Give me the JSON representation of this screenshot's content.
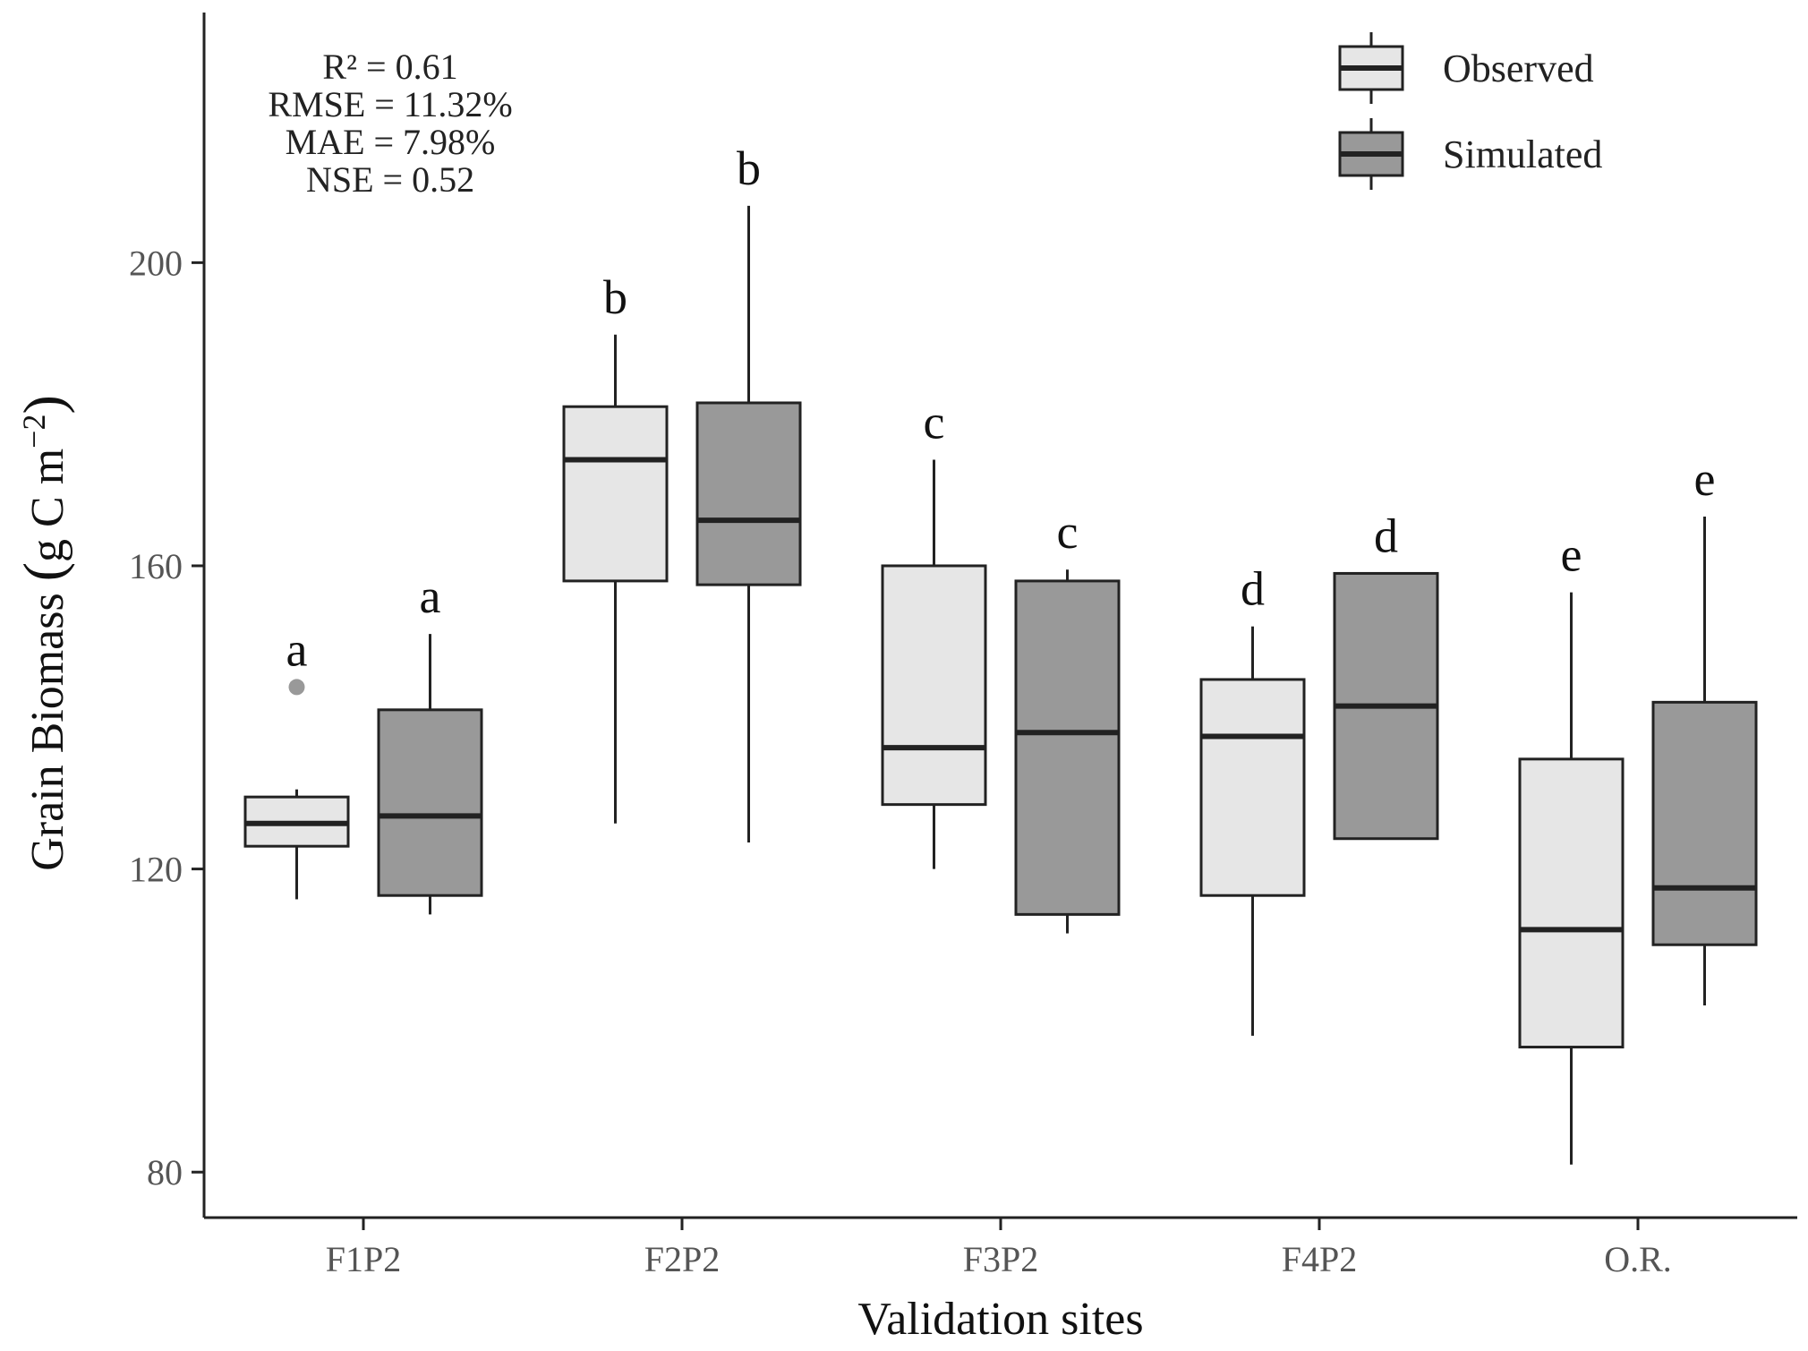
{
  "chart_data": {
    "type": "boxplot",
    "xlabel": "Validation sites",
    "ylabel": "Grain Biomass (g C m⁻²)",
    "ylabel_parts": {
      "main": "Grain Biomass ",
      "paren_open": "(",
      "units": "g C m",
      "exponent": "−2",
      "paren_close": ")"
    },
    "ylim": [
      74,
      233
    ],
    "yticks": [
      80,
      120,
      160,
      200
    ],
    "categories": [
      "F1P2",
      "F2P2",
      "F3P2",
      "F4P2",
      "O.R."
    ],
    "legend": {
      "position": "top-right",
      "entries": [
        {
          "name": "Observed",
          "color": "#e6e6e6"
        },
        {
          "name": "Simulated",
          "color": "#999999"
        }
      ]
    },
    "stats_text": [
      "R² = 0.61",
      "RMSE = 11.32%",
      "MAE  = 7.98%",
      "NSE  = 0.52"
    ],
    "series": [
      {
        "name": "Observed",
        "color": "#e6e6e6",
        "boxes": [
          {
            "category": "F1P2",
            "whisker_low": 116,
            "q1": 123,
            "median": 126,
            "q3": 129.5,
            "whisker_high": 130.5,
            "outliers": [
              144
            ],
            "letter": "a"
          },
          {
            "category": "F2P2",
            "whisker_low": 126,
            "q1": 158,
            "median": 174,
            "q3": 181,
            "whisker_high": 190.5,
            "outliers": [],
            "letter": "b"
          },
          {
            "category": "F3P2",
            "whisker_low": 120,
            "q1": 128.5,
            "median": 136,
            "q3": 160,
            "whisker_high": 174,
            "outliers": [],
            "letter": "c"
          },
          {
            "category": "F4P2",
            "whisker_low": 98,
            "q1": 116.5,
            "median": 137.5,
            "q3": 145,
            "whisker_high": 152,
            "outliers": [],
            "letter": "d"
          },
          {
            "category": "O.R.",
            "whisker_low": 81,
            "q1": 96.5,
            "median": 112,
            "q3": 134.5,
            "whisker_high": 156.5,
            "outliers": [],
            "letter": "e"
          }
        ]
      },
      {
        "name": "Simulated",
        "color": "#999999",
        "boxes": [
          {
            "category": "F1P2",
            "whisker_low": 114,
            "q1": 116.5,
            "median": 127,
            "q3": 141,
            "whisker_high": 151,
            "outliers": [],
            "letter": "a"
          },
          {
            "category": "F2P2",
            "whisker_low": 123.5,
            "q1": 157.5,
            "median": 166,
            "q3": 181.5,
            "whisker_high": 207.5,
            "outliers": [],
            "letter": "b"
          },
          {
            "category": "F3P2",
            "whisker_low": 111.5,
            "q1": 114,
            "median": 138,
            "q3": 158,
            "whisker_high": 159.5,
            "outliers": [],
            "letter": "c"
          },
          {
            "category": "F4P2",
            "whisker_low": 124,
            "q1": 124,
            "median": 141.5,
            "q3": 159,
            "whisker_high": 159,
            "outliers": [],
            "letter": "d"
          },
          {
            "category": "O.R.",
            "whisker_low": 102,
            "q1": 110,
            "median": 117.5,
            "q3": 142,
            "whisker_high": 166.5,
            "outliers": [],
            "letter": "e"
          }
        ]
      }
    ]
  }
}
